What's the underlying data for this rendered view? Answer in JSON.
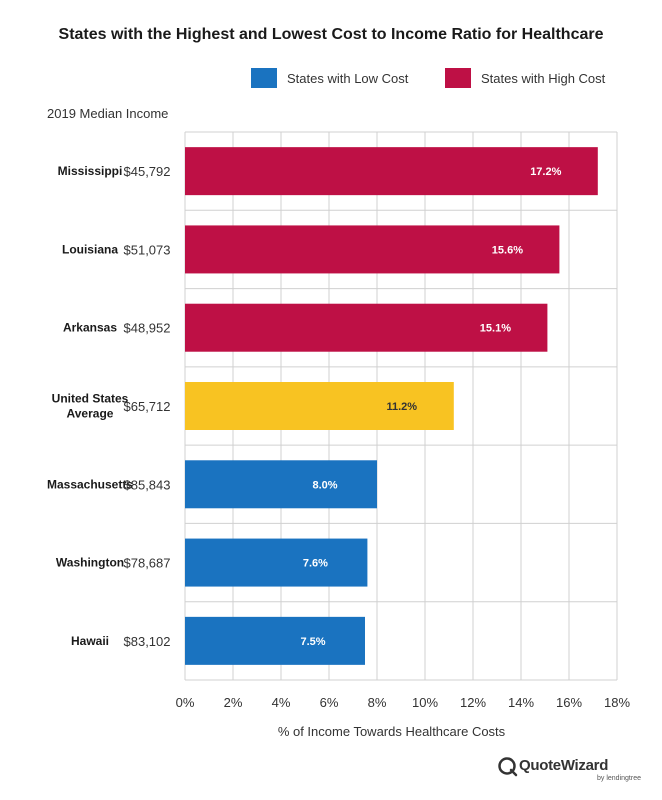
{
  "chart_data": {
    "type": "bar",
    "orientation": "horizontal",
    "title": "States with the Highest and Lowest Cost to Income Ratio for Healthcare",
    "xlabel": "% of Income Towards Healthcare Costs",
    "income_header": "2019 Median Income",
    "xlim": [
      0,
      18
    ],
    "xticks": [
      "0%",
      "2%",
      "4%",
      "6%",
      "8%",
      "10%",
      "12%",
      "14%",
      "16%",
      "18%"
    ],
    "grid": true,
    "legend_position": "top-right",
    "legend": [
      {
        "label": "States with Low Cost",
        "color": "#1a73c0"
      },
      {
        "label": "States with High Cost",
        "color": "#be1045"
      }
    ],
    "rows": [
      {
        "category": "Mississippi",
        "income": "$45,792",
        "value": 17.2,
        "label": "17.2%",
        "group": "high"
      },
      {
        "category": "Louisiana",
        "income": "$51,073",
        "value": 15.6,
        "label": "15.6%",
        "group": "high"
      },
      {
        "category": "Arkansas",
        "income": "$48,952",
        "value": 15.1,
        "label": "15.1%",
        "group": "high"
      },
      {
        "category": "United States Average",
        "category_lines": [
          "United States",
          "Average"
        ],
        "income": "$65,712",
        "value": 11.2,
        "label": "11.2%",
        "group": "average"
      },
      {
        "category": "Massachusetts",
        "income": "$85,843",
        "value": 8.0,
        "label": "8.0%",
        "group": "low"
      },
      {
        "category": "Washington",
        "income": "$78,687",
        "value": 7.6,
        "label": "7.6%",
        "group": "low"
      },
      {
        "category": "Hawaii",
        "income": "$83,102",
        "value": 7.5,
        "label": "7.5%",
        "group": "low"
      }
    ],
    "colors": {
      "high": "#be1045",
      "average": "#f8c322",
      "low": "#1a73c0",
      "grid": "#d0d0d0"
    }
  },
  "brand": {
    "name": "QuoteWizard",
    "sub": "by lendingtree"
  }
}
